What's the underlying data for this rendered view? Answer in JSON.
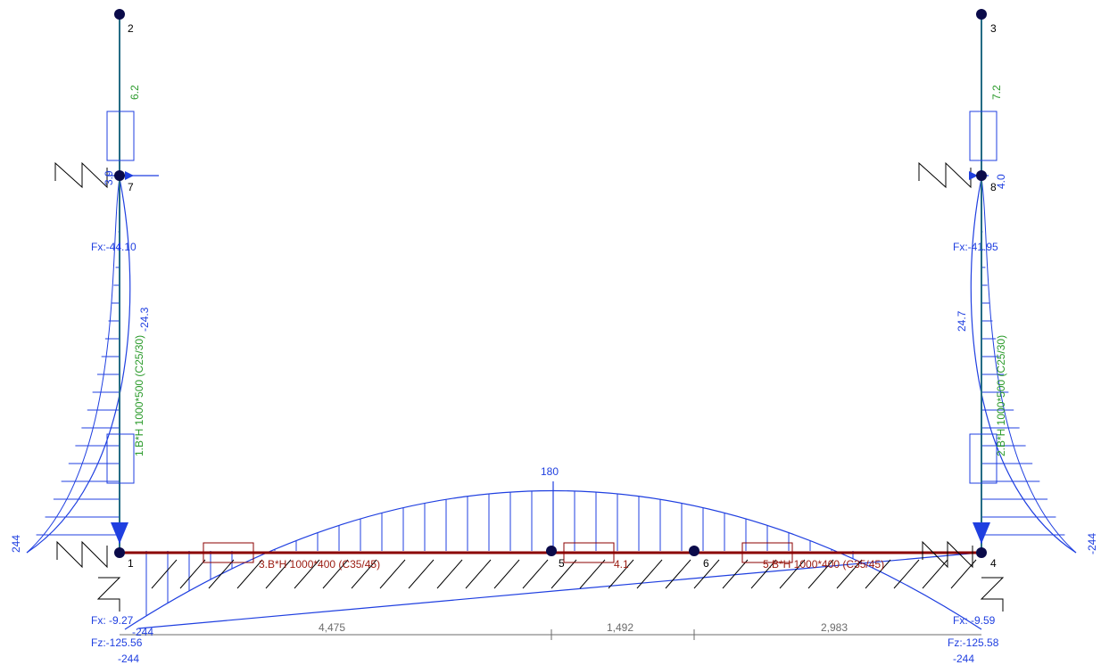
{
  "nodes": {
    "n1": "1",
    "n2": "2",
    "n3": "3",
    "n4": "4",
    "n5": "5",
    "n6": "6",
    "n7": "7",
    "n8": "8"
  },
  "columns": {
    "left_label": "1.B*H 1000*500 (C25/30)",
    "right_label": "2.B*H 1000*500 (C25/30)",
    "left_fx": "Fx:-44.10",
    "right_fx": "Fx:-41.95",
    "left_top_value": "6.2",
    "right_top_value": "7.2",
    "left_spring_value": "3.9",
    "right_spring_value": "4.0",
    "left_moment_mid": "-24.3",
    "right_moment_mid": "24.7"
  },
  "beams": {
    "left_label": "3.B*H 1000*400 (C35/45)",
    "mid_label": "4.1",
    "right_label": "5.B*H 1000*400 (C35/45)"
  },
  "moments": {
    "beam_max": "180",
    "left_base": "244",
    "right_base": "-244",
    "left_bottom_a": "-244",
    "left_bottom_b": "-244",
    "right_bottom": "-244"
  },
  "reactions": {
    "left_fx": "Fx: -9.27",
    "left_fz": "Fz:-125.56",
    "right_fx": "Fx: -9.59",
    "right_fz": "Fz:-125.58"
  },
  "dimensions": [
    "4,475",
    "1,492",
    "2,983"
  ],
  "colors": {
    "diagram": "#1f3fe0",
    "beam": "#8b0000",
    "column": "#2a9a2a",
    "label_red": "#9b1b10",
    "dimension": "#6b6b6b"
  }
}
